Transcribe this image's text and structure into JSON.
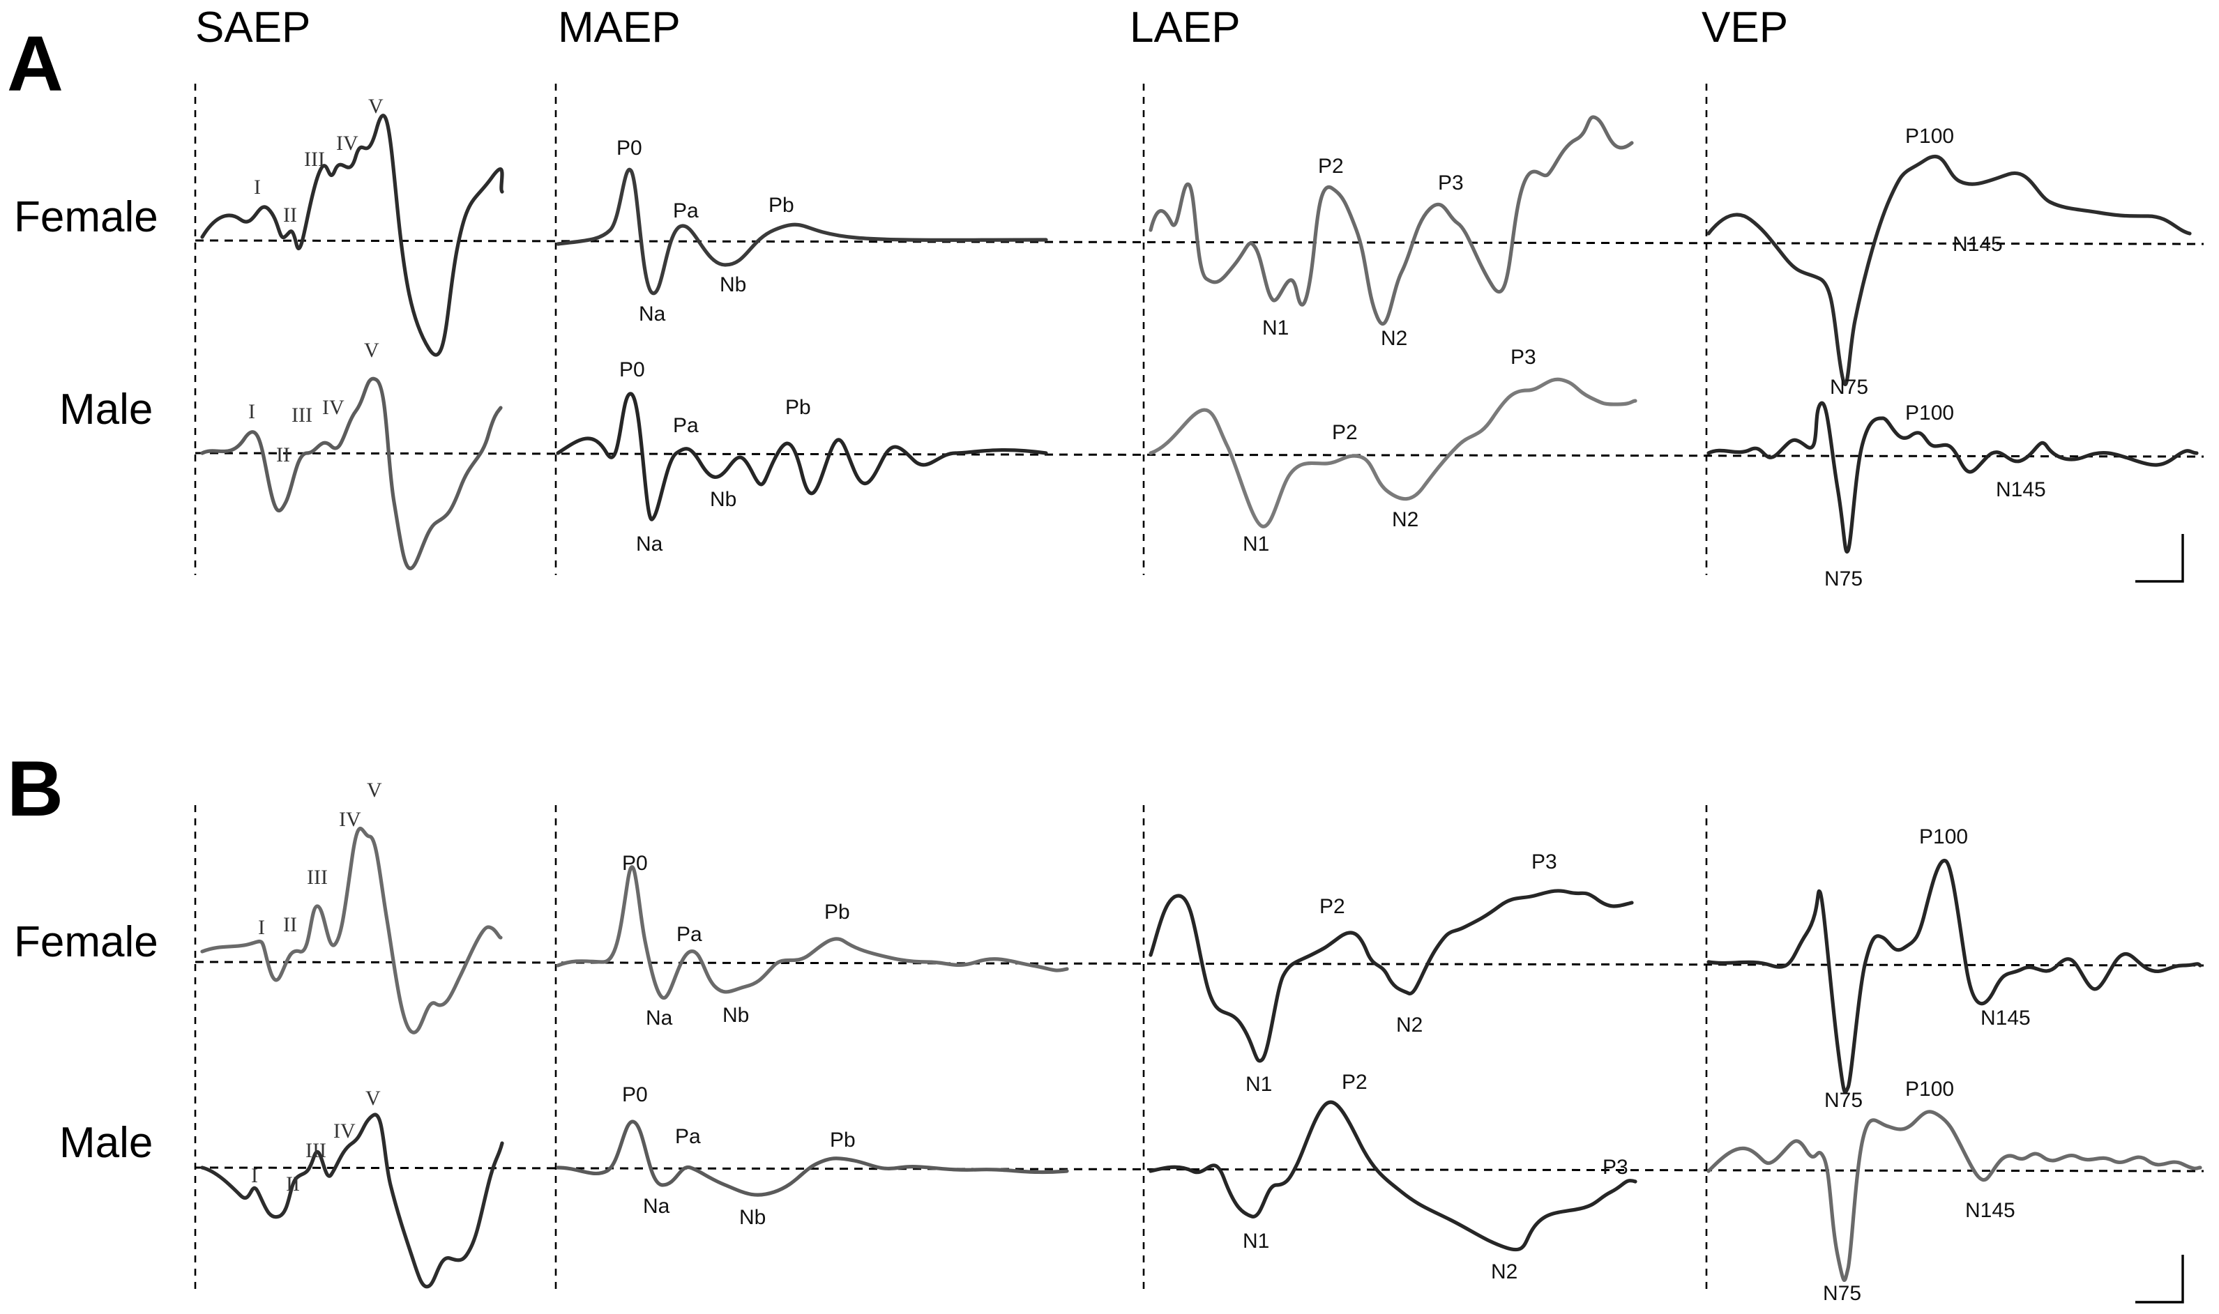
{
  "columns": [
    "SAEP",
    "MAEP",
    "LAEP",
    "VEP"
  ],
  "panels": [
    {
      "letter": "A",
      "rows": [
        {
          "label": "Female",
          "traces": [
            {
              "color": "#2c2c2c",
              "peaks": [
                "I",
                "II",
                "III",
                "IV",
                "V"
              ]
            },
            {
              "color": "#3a3a3a",
              "peaks": [
                "P0",
                "Na",
                "Pa",
                "Nb",
                "Pb"
              ]
            },
            {
              "color": "#6a6a6a",
              "peaks": [
                "N1",
                "P2",
                "N2",
                "P3"
              ]
            },
            {
              "color": "#2c2c2c",
              "peaks": [
                "N75",
                "P100",
                "N145"
              ]
            }
          ]
        },
        {
          "label": "Male",
          "traces": [
            {
              "color": "#5c5c5c",
              "peaks": [
                "I",
                "II",
                "III",
                "IV",
                "V"
              ]
            },
            {
              "color": "#262626",
              "peaks": [
                "P0",
                "Na",
                "Pa",
                "Nb",
                "Pb"
              ]
            },
            {
              "color": "#7a7a7a",
              "peaks": [
                "N1",
                "P2",
                "N2",
                "P3"
              ]
            },
            {
              "color": "#262626",
              "peaks": [
                "N75",
                "P100",
                "N145"
              ]
            }
          ]
        }
      ]
    },
    {
      "letter": "B",
      "rows": [
        {
          "label": "Female",
          "traces": [
            {
              "color": "#6a6a6a",
              "peaks": [
                "I",
                "II",
                "III",
                "IV",
                "V"
              ]
            },
            {
              "color": "#6a6a6a",
              "peaks": [
                "P0",
                "Na",
                "Pa",
                "Nb",
                "Pb"
              ]
            },
            {
              "color": "#262626",
              "peaks": [
                "N1",
                "P2",
                "N2",
                "P3"
              ]
            },
            {
              "color": "#262626",
              "peaks": [
                "N75",
                "P100",
                "N145"
              ]
            }
          ]
        },
        {
          "label": "Male",
          "traces": [
            {
              "color": "#2c2c2c",
              "peaks": [
                "I",
                "II",
                "III",
                "IV",
                "V"
              ]
            },
            {
              "color": "#5a5a5a",
              "peaks": [
                "P0",
                "Na",
                "Pa",
                "Nb",
                "Pb"
              ]
            },
            {
              "color": "#262626",
              "peaks": [
                "N1",
                "P2",
                "N2",
                "P3"
              ]
            },
            {
              "color": "#6a6a6a",
              "peaks": [
                "N75",
                "P100",
                "N145"
              ]
            }
          ]
        }
      ]
    }
  ]
}
